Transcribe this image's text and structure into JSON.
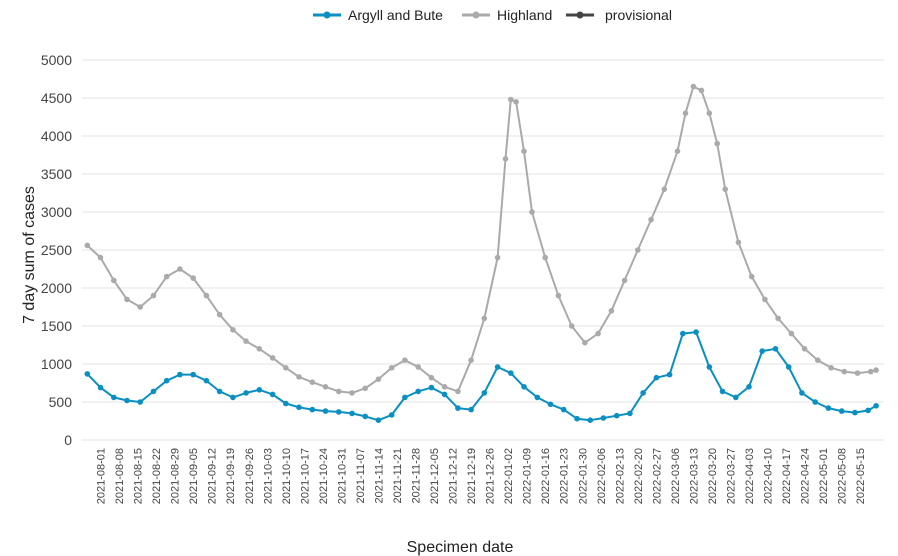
{
  "chart_data": {
    "type": "line",
    "title": "",
    "xlabel": "Specimen date",
    "ylabel": "7 day sum of cases",
    "ylim": [
      0,
      5000
    ],
    "yticks": [
      0,
      500,
      1000,
      1500,
      2000,
      2500,
      3000,
      3500,
      4000,
      4500,
      5000
    ],
    "grid": true,
    "legend_position": "top",
    "x_ticks": [
      "2021-08-01",
      "2021-08-08",
      "2021-08-15",
      "2021-08-22",
      "2021-08-29",
      "2021-09-05",
      "2021-09-12",
      "2021-09-19",
      "2021-09-26",
      "2021-10-03",
      "2021-10-10",
      "2021-10-17",
      "2021-10-24",
      "2021-10-31",
      "2021-11-07",
      "2021-11-14",
      "2021-11-21",
      "2021-11-28",
      "2021-12-05",
      "2021-12-12",
      "2021-12-19",
      "2021-12-26",
      "2022-01-02",
      "2022-01-09",
      "2022-01-16",
      "2022-01-23",
      "2022-01-30",
      "2022-02-06",
      "2022-02-13",
      "2022-02-20",
      "2022-02-27",
      "2022-03-06",
      "2022-03-13",
      "2022-03-20",
      "2022-03-27",
      "2022-04-03",
      "2022-04-10",
      "2022-04-17",
      "2022-04-24",
      "2022-05-01",
      "2022-05-08",
      "2022-05-15"
    ],
    "series": [
      {
        "name": "Argyll and Bute",
        "color": "#0a8fc2",
        "points": [
          [
            "2021-07-27",
            870
          ],
          [
            "2021-08-01",
            690
          ],
          [
            "2021-08-06",
            560
          ],
          [
            "2021-08-11",
            520
          ],
          [
            "2021-08-16",
            500
          ],
          [
            "2021-08-21",
            640
          ],
          [
            "2021-08-26",
            780
          ],
          [
            "2021-08-31",
            860
          ],
          [
            "2021-09-05",
            860
          ],
          [
            "2021-09-10",
            780
          ],
          [
            "2021-09-15",
            640
          ],
          [
            "2021-09-20",
            560
          ],
          [
            "2021-09-25",
            620
          ],
          [
            "2021-09-30",
            660
          ],
          [
            "2021-10-05",
            600
          ],
          [
            "2021-10-10",
            480
          ],
          [
            "2021-10-15",
            430
          ],
          [
            "2021-10-20",
            400
          ],
          [
            "2021-10-25",
            380
          ],
          [
            "2021-10-30",
            370
          ],
          [
            "2021-11-04",
            350
          ],
          [
            "2021-11-09",
            310
          ],
          [
            "2021-11-14",
            260
          ],
          [
            "2021-11-19",
            330
          ],
          [
            "2021-11-24",
            560
          ],
          [
            "2021-11-29",
            640
          ],
          [
            "2021-12-04",
            690
          ],
          [
            "2021-12-09",
            600
          ],
          [
            "2021-12-14",
            420
          ],
          [
            "2021-12-19",
            400
          ],
          [
            "2021-12-24",
            620
          ],
          [
            "2021-12-29",
            960
          ],
          [
            "2022-01-03",
            880
          ],
          [
            "2022-01-08",
            700
          ],
          [
            "2022-01-13",
            560
          ],
          [
            "2022-01-18",
            470
          ],
          [
            "2022-01-23",
            400
          ],
          [
            "2022-01-28",
            280
          ],
          [
            "2022-02-02",
            260
          ],
          [
            "2022-02-07",
            290
          ],
          [
            "2022-02-12",
            320
          ],
          [
            "2022-02-17",
            350
          ],
          [
            "2022-02-22",
            620
          ],
          [
            "2022-02-27",
            820
          ],
          [
            "2022-03-04",
            860
          ],
          [
            "2022-03-09",
            1400
          ],
          [
            "2022-03-14",
            1420
          ],
          [
            "2022-03-19",
            960
          ],
          [
            "2022-03-24",
            640
          ],
          [
            "2022-03-29",
            560
          ],
          [
            "2022-04-03",
            700
          ],
          [
            "2022-04-08",
            1170
          ],
          [
            "2022-04-13",
            1200
          ],
          [
            "2022-04-18",
            960
          ],
          [
            "2022-04-23",
            620
          ],
          [
            "2022-04-28",
            500
          ],
          [
            "2022-05-03",
            420
          ],
          [
            "2022-05-08",
            380
          ],
          [
            "2022-05-13",
            360
          ],
          [
            "2022-05-18",
            390
          ],
          [
            "2022-05-21",
            450
          ]
        ]
      },
      {
        "name": "Highland",
        "color": "#aaaaaa",
        "points": [
          [
            "2021-07-27",
            2560
          ],
          [
            "2021-08-01",
            2400
          ],
          [
            "2021-08-06",
            2100
          ],
          [
            "2021-08-11",
            1850
          ],
          [
            "2021-08-16",
            1750
          ],
          [
            "2021-08-21",
            1900
          ],
          [
            "2021-08-26",
            2150
          ],
          [
            "2021-08-31",
            2250
          ],
          [
            "2021-09-05",
            2130
          ],
          [
            "2021-09-10",
            1900
          ],
          [
            "2021-09-15",
            1650
          ],
          [
            "2021-09-20",
            1450
          ],
          [
            "2021-09-25",
            1300
          ],
          [
            "2021-09-30",
            1200
          ],
          [
            "2021-10-05",
            1080
          ],
          [
            "2021-10-10",
            950
          ],
          [
            "2021-10-15",
            830
          ],
          [
            "2021-10-20",
            760
          ],
          [
            "2021-10-25",
            700
          ],
          [
            "2021-10-30",
            640
          ],
          [
            "2021-11-04",
            620
          ],
          [
            "2021-11-09",
            680
          ],
          [
            "2021-11-14",
            800
          ],
          [
            "2021-11-19",
            950
          ],
          [
            "2021-11-24",
            1050
          ],
          [
            "2021-11-29",
            960
          ],
          [
            "2021-12-04",
            820
          ],
          [
            "2021-12-09",
            700
          ],
          [
            "2021-12-14",
            640
          ],
          [
            "2021-12-19",
            1050
          ],
          [
            "2021-12-24",
            1600
          ],
          [
            "2021-12-29",
            2400
          ],
          [
            "2022-01-01",
            3700
          ],
          [
            "2022-01-03",
            4480
          ],
          [
            "2022-01-05",
            4450
          ],
          [
            "2022-01-08",
            3800
          ],
          [
            "2022-01-11",
            3000
          ],
          [
            "2022-01-16",
            2400
          ],
          [
            "2022-01-21",
            1900
          ],
          [
            "2022-01-26",
            1500
          ],
          [
            "2022-01-31",
            1280
          ],
          [
            "2022-02-05",
            1400
          ],
          [
            "2022-02-10",
            1700
          ],
          [
            "2022-02-15",
            2100
          ],
          [
            "2022-02-20",
            2500
          ],
          [
            "2022-02-25",
            2900
          ],
          [
            "2022-03-02",
            3300
          ],
          [
            "2022-03-07",
            3800
          ],
          [
            "2022-03-10",
            4300
          ],
          [
            "2022-03-13",
            4650
          ],
          [
            "2022-03-16",
            4600
          ],
          [
            "2022-03-19",
            4300
          ],
          [
            "2022-03-22",
            3900
          ],
          [
            "2022-03-25",
            3300
          ],
          [
            "2022-03-30",
            2600
          ],
          [
            "2022-04-04",
            2150
          ],
          [
            "2022-04-09",
            1850
          ],
          [
            "2022-04-14",
            1600
          ],
          [
            "2022-04-19",
            1400
          ],
          [
            "2022-04-24",
            1200
          ],
          [
            "2022-04-29",
            1050
          ],
          [
            "2022-05-04",
            950
          ],
          [
            "2022-05-09",
            900
          ],
          [
            "2022-05-14",
            880
          ],
          [
            "2022-05-19",
            900
          ],
          [
            "2022-05-21",
            920
          ]
        ]
      },
      {
        "name": "provisional",
        "color": "#444444",
        "points": []
      }
    ]
  }
}
